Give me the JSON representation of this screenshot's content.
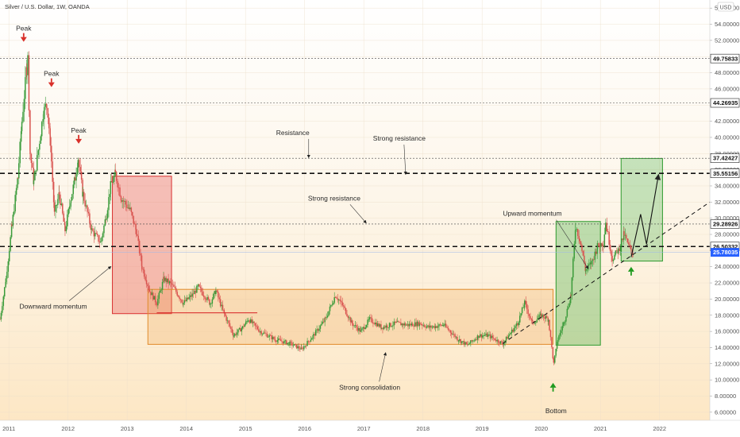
{
  "header": {
    "title": "Silver / U.S. Dollar, 1W, OANDA",
    "currency": "USD"
  },
  "colors": {
    "up": "#3a9b3a",
    "down": "#d9534f",
    "background": "#fdf1de",
    "current_price_bg": "#2962ff"
  },
  "chart_data": {
    "type": "candlestick",
    "x_ticks": [
      "2011",
      "2012",
      "2013",
      "2014",
      "2015",
      "2016",
      "2017",
      "2018",
      "2019",
      "2020",
      "2021",
      "2022"
    ],
    "y_ticks": [
      "6.00000",
      "8.00000",
      "10.00000",
      "12.00000",
      "14.00000",
      "16.00000",
      "18.00000",
      "20.00000",
      "22.00000",
      "24.00000",
      "26.00000",
      "28.00000",
      "30.00000",
      "32.00000",
      "34.00000",
      "36.00000",
      "38.00000",
      "40.00000",
      "42.00000",
      "44.00000",
      "46.00000",
      "48.00000",
      "50.00000",
      "52.00000",
      "54.00000",
      "56.00000"
    ],
    "ylim": [
      5,
      57
    ],
    "xlim": [
      2010.85,
      2022.85
    ],
    "price_path": [
      [
        2010.85,
        17.5
      ],
      [
        2010.95,
        22.5
      ],
      [
        2011.05,
        29.0
      ],
      [
        2011.15,
        35.0
      ],
      [
        2011.22,
        42.0
      ],
      [
        2011.3,
        48.5
      ],
      [
        2011.32,
        49.76
      ],
      [
        2011.36,
        38.0
      ],
      [
        2011.42,
        34.5
      ],
      [
        2011.5,
        38.5
      ],
      [
        2011.58,
        43.0
      ],
      [
        2011.64,
        44.27
      ],
      [
        2011.7,
        39.5
      ],
      [
        2011.77,
        30.5
      ],
      [
        2011.85,
        33.0
      ],
      [
        2011.95,
        28.5
      ],
      [
        2012.05,
        32.5
      ],
      [
        2012.12,
        35.0
      ],
      [
        2012.17,
        37.42
      ],
      [
        2012.25,
        33.0
      ],
      [
        2012.4,
        28.5
      ],
      [
        2012.55,
        27.0
      ],
      [
        2012.65,
        30.5
      ],
      [
        2012.72,
        34.0
      ],
      [
        2012.8,
        35.5
      ],
      [
        2012.9,
        32.5
      ],
      [
        2013.05,
        31.0
      ],
      [
        2013.15,
        28.5
      ],
      [
        2013.25,
        24.0
      ],
      [
        2013.38,
        21.0
      ],
      [
        2013.5,
        19.5
      ],
      [
        2013.62,
        22.5
      ],
      [
        2013.75,
        21.8
      ],
      [
        2013.95,
        19.5
      ],
      [
        2014.1,
        20.5
      ],
      [
        2014.2,
        21.5
      ],
      [
        2014.4,
        19.5
      ],
      [
        2014.5,
        21.0
      ],
      [
        2014.62,
        18.5
      ],
      [
        2014.8,
        15.5
      ],
      [
        2014.95,
        16.5
      ],
      [
        2015.05,
        17.5
      ],
      [
        2015.25,
        16.0
      ],
      [
        2015.5,
        15.0
      ],
      [
        2015.75,
        14.5
      ],
      [
        2015.95,
        13.8
      ],
      [
        2016.15,
        15.5
      ],
      [
        2016.35,
        17.5
      ],
      [
        2016.52,
        20.5
      ],
      [
        2016.62,
        19.5
      ],
      [
        2016.8,
        17.0
      ],
      [
        2016.95,
        16.0
      ],
      [
        2017.1,
        17.5
      ],
      [
        2017.3,
        16.5
      ],
      [
        2017.55,
        17.0
      ],
      [
        2017.75,
        16.8
      ],
      [
        2017.95,
        17.0
      ],
      [
        2018.1,
        16.5
      ],
      [
        2018.35,
        16.8
      ],
      [
        2018.6,
        15.0
      ],
      [
        2018.75,
        14.3
      ],
      [
        2018.95,
        15.5
      ],
      [
        2019.1,
        15.5
      ],
      [
        2019.35,
        14.5
      ],
      [
        2019.6,
        17.0
      ],
      [
        2019.72,
        19.5
      ],
      [
        2019.85,
        17.0
      ],
      [
        2020.0,
        18.0
      ],
      [
        2020.12,
        17.5
      ],
      [
        2020.21,
        12.0
      ],
      [
        2020.28,
        15.0
      ],
      [
        2020.4,
        17.5
      ],
      [
        2020.5,
        20.5
      ],
      [
        2020.58,
        29.0
      ],
      [
        2020.65,
        27.5
      ],
      [
        2020.75,
        23.5
      ],
      [
        2020.85,
        24.5
      ],
      [
        2020.95,
        26.5
      ],
      [
        2021.05,
        27.0
      ],
      [
        2021.09,
        29.5
      ],
      [
        2021.2,
        25.0
      ],
      [
        2021.3,
        26.0
      ],
      [
        2021.4,
        28.0
      ],
      [
        2021.48,
        26.5
      ],
      [
        2021.55,
        25.78
      ]
    ],
    "levels": [
      {
        "value": 49.75833,
        "label": "49.75833",
        "style": "dotted"
      },
      {
        "value": 44.26935,
        "label": "44.26935",
        "style": "dotted"
      },
      {
        "value": 37.42427,
        "label": "37.42427",
        "style": "dotted"
      },
      {
        "value": 35.55156,
        "label": "35.55156",
        "style": "dashed"
      },
      {
        "value": 29.28926,
        "label": "29.28926",
        "style": "dotted"
      },
      {
        "value": 26.50332,
        "label": "26.50332",
        "style": "dashed"
      },
      {
        "value": 25.78035,
        "label": "25.78035",
        "style": "current"
      }
    ],
    "zones": [
      {
        "name": "downward-momentum-box",
        "x0": 2012.75,
        "x1": 2013.75,
        "y0": 18.2,
        "y1": 35.2,
        "fill": "rgba(230,70,70,0.32)",
        "stroke": "#d93030"
      },
      {
        "name": "consolidation-box",
        "x0": 2013.35,
        "x1": 2020.2,
        "y0": 14.4,
        "y1": 21.2,
        "fill": "rgba(240,160,70,0.25)",
        "stroke": "#e08a2a"
      },
      {
        "name": "upward-momentum-box",
        "x0": 2020.25,
        "x1": 2021.0,
        "y0": 14.3,
        "y1": 29.6,
        "fill": "rgba(70,175,70,0.35)",
        "stroke": "#2e9a2e"
      },
      {
        "name": "projection-box",
        "x0": 2021.35,
        "x1": 2022.05,
        "y0": 24.7,
        "y1": 37.4,
        "fill": "rgba(70,175,70,0.30)",
        "stroke": "#2e9a2e"
      }
    ],
    "annotations": [
      {
        "text": "Peak",
        "x": 2011.25,
        "y": 53.2,
        "arrow": "red-down"
      },
      {
        "text": "Peak",
        "x": 2011.72,
        "y": 47.6,
        "arrow": "red-down"
      },
      {
        "text": "Peak",
        "x": 2012.18,
        "y": 40.6,
        "arrow": "red-down"
      },
      {
        "text": "Resistance",
        "x": 2015.8,
        "y": 40.3
      },
      {
        "text": "Strong resistance",
        "x": 2017.6,
        "y": 39.6
      },
      {
        "text": "Strong resistance",
        "x": 2016.5,
        "y": 32.2
      },
      {
        "text": "Upward momentum",
        "x": 2019.85,
        "y": 30.3
      },
      {
        "text": "Downward momentum",
        "x": 2011.75,
        "y": 18.8
      },
      {
        "text": "Strong consolidation",
        "x": 2017.1,
        "y": 8.8
      },
      {
        "text": "Bottom",
        "x": 2020.25,
        "y": 5.9
      }
    ]
  }
}
